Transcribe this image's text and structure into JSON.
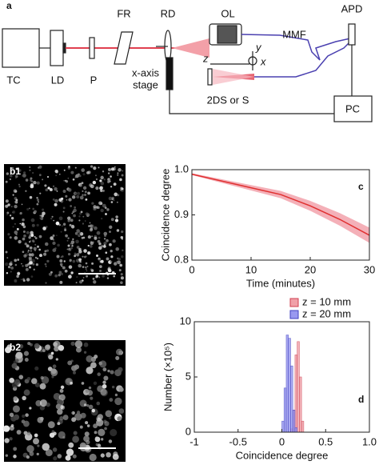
{
  "diagram": {
    "panel_label": "a",
    "tc": "TC",
    "ld": "LD",
    "p": "P",
    "fr": "FR",
    "rd": "RD",
    "ol": "OL",
    "mmf": "MMF",
    "apd": "APD",
    "stage": [
      "x-axis",
      "stage"
    ],
    "z": "z",
    "y": "y",
    "x": "x",
    "sample": "2DS or S",
    "pc": "PC"
  },
  "images": [
    {
      "label": "b1"
    },
    {
      "label": "b2"
    }
  ],
  "chart_data": [
    {
      "type": "line",
      "panel_label": "c",
      "xlabel": "Time (minutes)",
      "ylabel": "Coincidence degree",
      "x": [
        0,
        5,
        10,
        15,
        20,
        25,
        30
      ],
      "series": [
        {
          "color": "#e03030",
          "band_color": "#f4b0b8",
          "values": [
            0.99,
            0.975,
            0.96,
            0.945,
            0.92,
            0.89,
            0.855
          ],
          "errors": [
            0.002,
            0.004,
            0.006,
            0.008,
            0.011,
            0.014,
            0.017
          ]
        }
      ],
      "xlim": [
        0,
        30
      ],
      "xticks": [
        0,
        10,
        20,
        30
      ],
      "ylim": [
        0.8,
        1.0
      ],
      "yticks": [
        0.8,
        0.9,
        {
          "value": 1.0,
          "label": "1.0"
        }
      ]
    },
    {
      "type": "histogram",
      "panel_label": "d",
      "xlabel": "Coincidence degree",
      "ylabel": "Number (×10⁵)",
      "bins": [
        0,
        0.025,
        0.05,
        0.075,
        0.1,
        0.125,
        0.15,
        0.175,
        0.2,
        0.225,
        0.25
      ],
      "series": [
        {
          "name": "z = 10 mm",
          "color": "#f0a0a8",
          "edge": "#d04050",
          "values": [
            0,
            0,
            0,
            0,
            0.3,
            2,
            7,
            8.2,
            5,
            1
          ]
        },
        {
          "name": "z = 20 mm",
          "color": "#9898f0",
          "edge": "#4040c0",
          "values": [
            1,
            4,
            8.8,
            8.5,
            6,
            2,
            0.4,
            0,
            0,
            0
          ]
        }
      ],
      "xlim": [
        -1,
        1
      ],
      "xticks": [
        -1,
        -0.5,
        0,
        0.5,
        {
          "value": 1,
          "label": "1.0"
        }
      ],
      "ylim": [
        0,
        10
      ],
      "yticks": [
        0,
        5,
        10
      ]
    }
  ]
}
